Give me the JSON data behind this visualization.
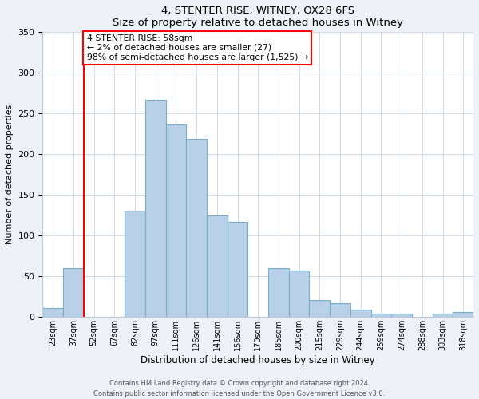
{
  "title": "4, STENTER RISE, WITNEY, OX28 6FS",
  "subtitle": "Size of property relative to detached houses in Witney",
  "xlabel": "Distribution of detached houses by size in Witney",
  "ylabel": "Number of detached properties",
  "bin_labels": [
    "23sqm",
    "37sqm",
    "52sqm",
    "67sqm",
    "82sqm",
    "97sqm",
    "111sqm",
    "126sqm",
    "141sqm",
    "156sqm",
    "170sqm",
    "185sqm",
    "200sqm",
    "215sqm",
    "229sqm",
    "244sqm",
    "259sqm",
    "274sqm",
    "288sqm",
    "303sqm",
    "318sqm"
  ],
  "bar_values": [
    11,
    60,
    0,
    0,
    131,
    267,
    237,
    219,
    125,
    117,
    0,
    60,
    57,
    21,
    17,
    9,
    4,
    4,
    0,
    4,
    6
  ],
  "bar_color": "#b8d0e8",
  "bar_edge_color": "#7aaec8",
  "vline_x": 2.0,
  "vline_color": "red",
  "annotation_text": "4 STENTER RISE: 58sqm\n← 2% of detached houses are smaller (27)\n98% of semi-detached houses are larger (1,525) →",
  "annotation_box_color": "white",
  "annotation_box_edge_color": "red",
  "ylim": [
    0,
    350
  ],
  "yticks": [
    0,
    50,
    100,
    150,
    200,
    250,
    300,
    350
  ],
  "footer1": "Contains HM Land Registry data © Crown copyright and database right 2024.",
  "footer2": "Contains public sector information licensed under the Open Government Licence v3.0.",
  "background_color": "#eef2f8",
  "plot_background_color": "#ffffff"
}
